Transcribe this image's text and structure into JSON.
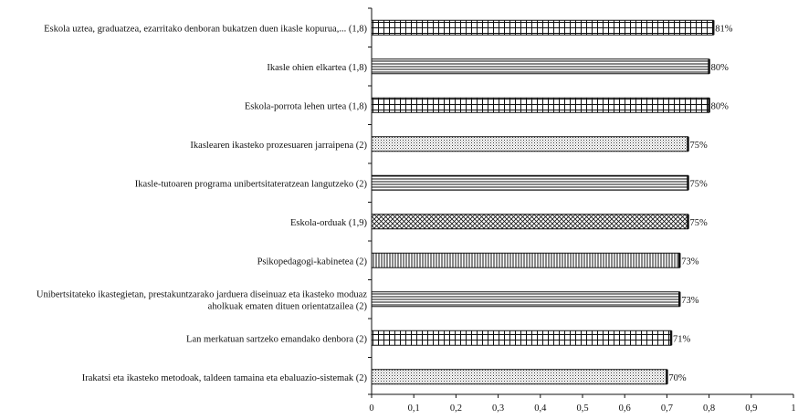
{
  "chart_data": {
    "type": "bar",
    "orientation": "horizontal",
    "categories": [
      [
        "Eskola uztea, graduatzea, ezarritako denboran bukatzen duen ikasle kopurua,... (1,8)"
      ],
      [
        "Ikasle ohien elkartea (1,8)"
      ],
      [
        "Eskola-porrota lehen urtea (1,8)"
      ],
      [
        "Ikaslearen ikasteko prozesuaren jarraipena (2)"
      ],
      [
        "Ikasle-tutoaren programa unibertsitateratzean langutzeko (2)"
      ],
      [
        "Eskola-orduak (1,9)"
      ],
      [
        "Psikopedagogi-kabinetea (2)"
      ],
      [
        "Unibertsitateko ikastegietan, prestakuntzarako jarduera diseinuaz eta ikasteko moduaz",
        "aholkuak ematen dituen orientatzailea (2)"
      ],
      [
        "Lan merkatuan sartzeko emandako denbora (2)"
      ],
      [
        "Irakatsi eta ikasteko metodoak, taldeen tamaina eta ebaluazio-sistemak (2)"
      ]
    ],
    "values": [
      0.81,
      0.8,
      0.8,
      0.75,
      0.75,
      0.75,
      0.73,
      0.73,
      0.71,
      0.7
    ],
    "value_labels": [
      "81%",
      "80%",
      "80%",
      "75%",
      "75%",
      "75%",
      "73%",
      "73%",
      "71%",
      "70%"
    ],
    "patterns": [
      "grid",
      "hlines",
      "grid",
      "dots",
      "hlines",
      "crosshatch",
      "vlines",
      "hlines",
      "grid",
      "dots"
    ],
    "xlim": [
      0,
      1
    ],
    "xticks": [
      0,
      0.1,
      0.2,
      0.3,
      0.4,
      0.5,
      0.6,
      0.7,
      0.8,
      0.9,
      1
    ],
    "xtick_labels": [
      "0",
      "0,1",
      "0,2",
      "0,3",
      "0,4",
      "0,5",
      "0,6",
      "0,7",
      "0,8",
      "0,9",
      "1"
    ],
    "grid": false,
    "legend": false,
    "title": "",
    "xlabel": "",
    "ylabel": ""
  }
}
